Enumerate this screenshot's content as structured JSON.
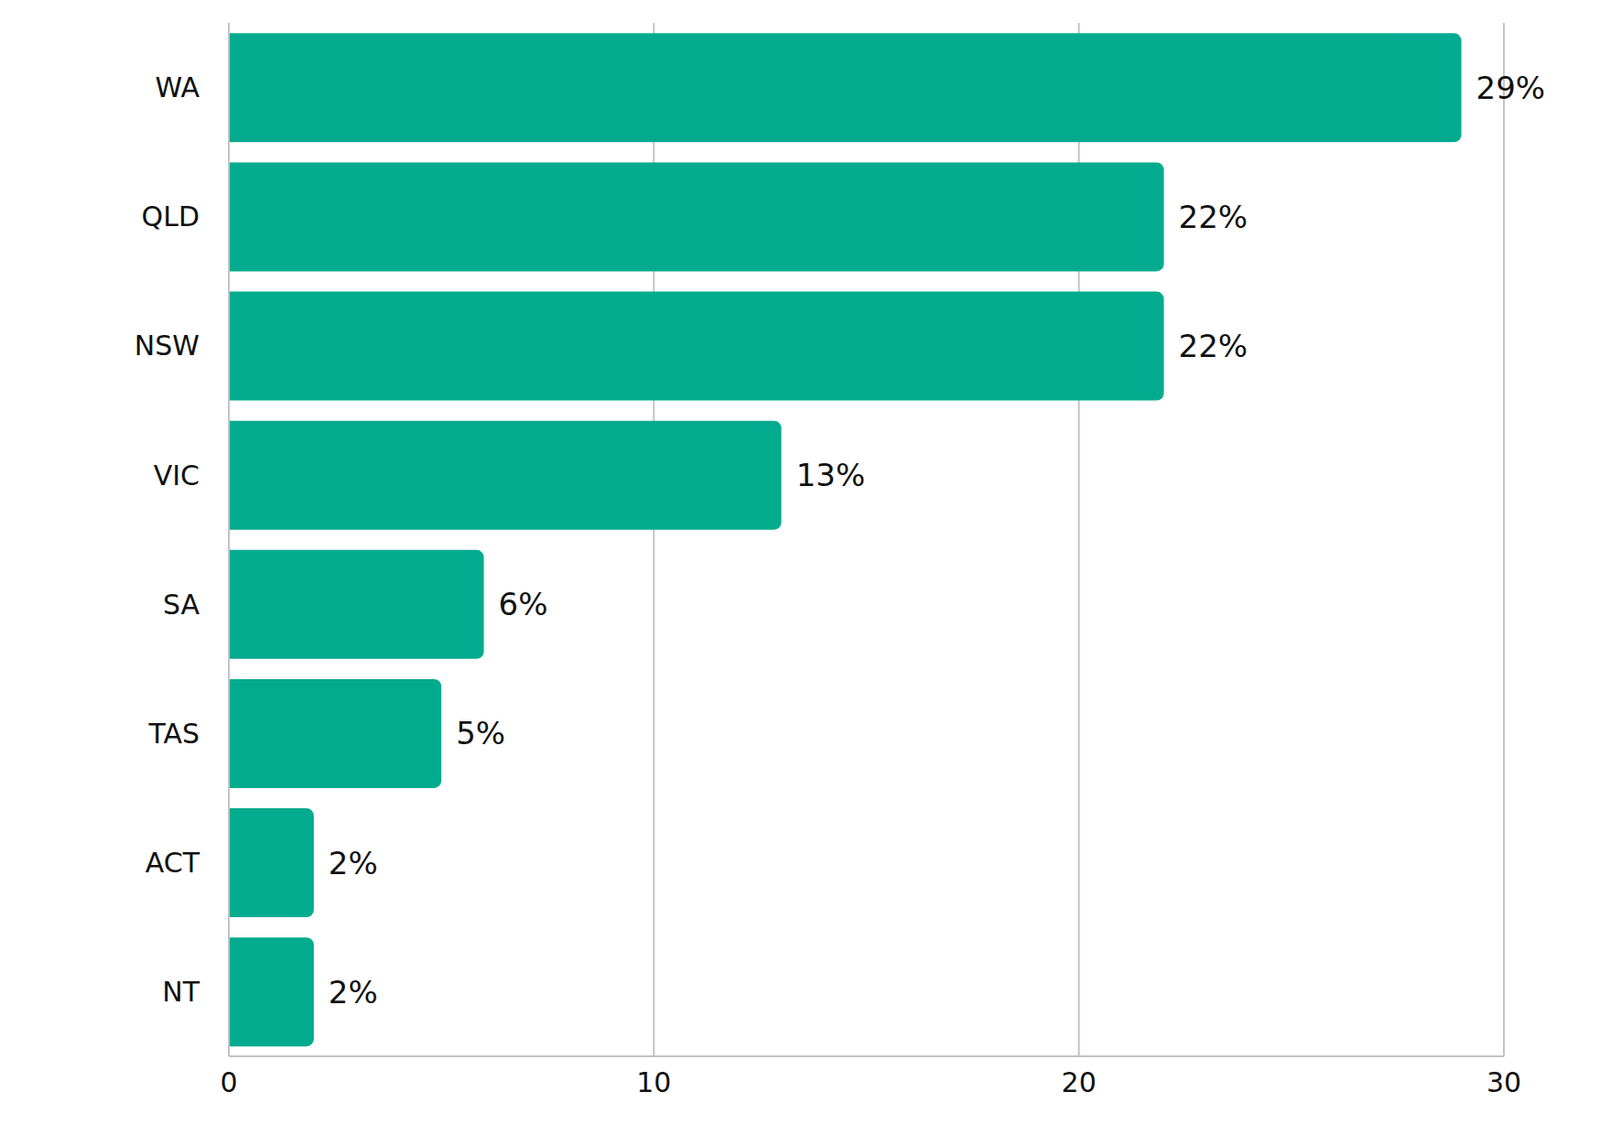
{
  "chart_data": {
    "type": "bar",
    "orientation": "horizontal",
    "categories": [
      "WA",
      "QLD",
      "NSW",
      "VIC",
      "SA",
      "TAS",
      "ACT",
      "NT"
    ],
    "values": [
      29,
      22,
      22,
      13,
      6,
      5,
      2,
      2
    ],
    "value_labels": [
      "29%",
      "22%",
      "22%",
      "13%",
      "6%",
      "5%",
      "2%",
      "2%"
    ],
    "color": "#03ab8e",
    "xlim": [
      0,
      30
    ],
    "xticks": [
      0,
      10,
      20,
      30
    ],
    "grid": true,
    "data_labels": true
  }
}
